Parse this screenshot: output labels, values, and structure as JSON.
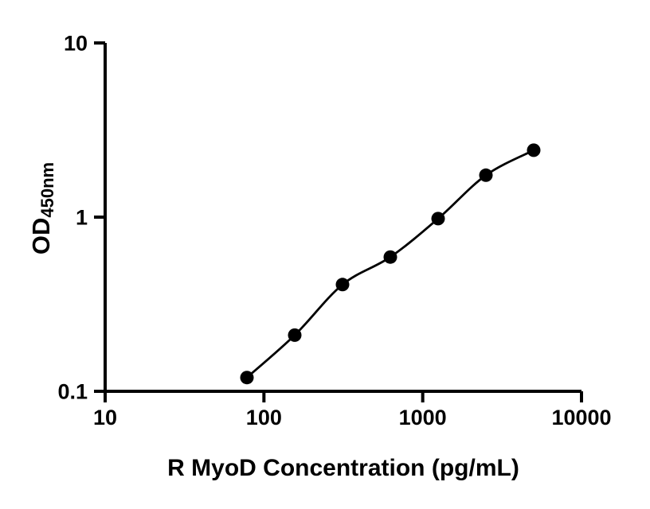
{
  "chart_data": {
    "type": "scatter",
    "title": "",
    "xlabel": "R MyoD Concentration (pg/mL)",
    "ylabel_main": "OD",
    "ylabel_sub": "450nm",
    "x_scale": "log",
    "y_scale": "log",
    "xlim": [
      10,
      10000
    ],
    "ylim": [
      0.1,
      10
    ],
    "grid": false,
    "legend": false,
    "axis_color": "#000000",
    "background_color": "#ffffff",
    "x_ticks": [
      {
        "v": 10,
        "label": "10"
      },
      {
        "v": 100,
        "label": "100"
      },
      {
        "v": 1000,
        "label": "1000"
      },
      {
        "v": 10000,
        "label": "10000"
      }
    ],
    "y_ticks": [
      {
        "v": 0.1,
        "label": "0.1"
      },
      {
        "v": 1,
        "label": "1"
      },
      {
        "v": 10,
        "label": "10"
      }
    ],
    "series": [
      {
        "marker": "filled-circle",
        "marker_color": "#000000",
        "line_color": "#000000",
        "x": [
          78.125,
          156.25,
          312.5,
          625,
          1250,
          2500,
          5000
        ],
        "y": [
          0.12,
          0.21,
          0.41,
          0.59,
          0.98,
          1.74,
          2.42
        ]
      }
    ]
  }
}
